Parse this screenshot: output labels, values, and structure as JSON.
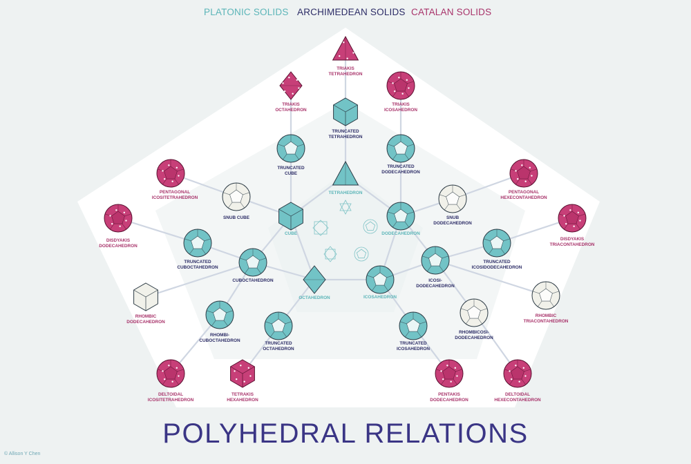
{
  "legend": {
    "platonic": "PLATONIC SOLIDS",
    "archimedean": "ARCHIMEDEAN SOLIDS",
    "catalan": "CATALAN SOLIDS"
  },
  "title": "POLYHEDRAL RELATIONS",
  "credit": "© Allison Y Chen",
  "colors": {
    "platonic": "#5bb5b8",
    "archimedean": "#2c2c66",
    "catalan": "#a8336a",
    "catalan_fill": "#c73f78",
    "platonic_fill": "#72c3c6",
    "neutral_fill": "#f1f1ea",
    "title": "#3a3585"
  },
  "platonic": {
    "tetrahedron": "TETRAHEDRON",
    "cube": "CUBE",
    "dodecahedron": "DODECAHEDRON",
    "octahedron": "OCTAHEDRON",
    "icosahedron": "ICOSAHEDRON"
  },
  "archimedean": {
    "truncated_tetrahedron": "TRUNCATED\nTETRAHEDRON",
    "truncated_cube": "TRUNCATED\nCUBE",
    "truncated_dodecahedron": "TRUNCATED\nDODECAHEDRON",
    "snub_cube": "SNUB CUBE",
    "snub_dodecahedron": "SNUB\nDODECAHEDRON",
    "truncated_cuboctahedron": "TRUNCATED\nCUBOCTAHEDRON",
    "cuboctahedron": "CUBOCTAHEDRON",
    "icosidodecahedron": "ICOSI-\nDODECAHEDRON",
    "truncated_icosidodecahedron": "TRUNCATED\nICOSIDODECAHEDRON",
    "rhombicuboctahedron": "RHOMBI-\nCUBOCTAHEDRON",
    "truncated_octahedron": "TRUNCATED\nOCTAHEDRON",
    "truncated_icosahedron": "TRUNCATED\nICOSAHEDRON",
    "rhombicosidodecahedron": "RHOMBICOSI-\nDODECAHEDRON"
  },
  "catalan": {
    "triakis_tetrahedron": "TRIAKIS\nTETRAHEDRON",
    "triakis_octahedron": "TRIAKIS\nOCTAHEDRON",
    "triakis_icosahedron": "TRIAKIS\nICOSAHEDRON",
    "pentagonal_icositetrahedron": "PENTAGONAL\nICOSITETRAHEDRON",
    "pentagonal_hexecontahedron": "PENTAGONAL\nHEXECONTAHEDRON",
    "disdyakis_dodecahedron": "DISDYAKIS\nDODECAHEDRON",
    "disdyakis_triacontahedron": "DISDYAKIS\nTRIACONTAHEDRON",
    "rhombic_dodecahedron": "RHOMBIC\nDODECAHEDRON",
    "rhombic_triacontahedron": "RHOMBIC\nTRIACONTAHEDRON",
    "deltoidal_icositetrahedron": "DELTOIDAL\nICOSITETRAHEDRON",
    "tetrakis_hexahedron": "TETRAKIS\nHEXAHEDRON",
    "pentakis_dodecahedron": "PENTAKIS\nDODECAHEDRON",
    "deltoidal_hexecontahedron": "DELTOIDAL\nHEXECONTAHEDRON"
  }
}
